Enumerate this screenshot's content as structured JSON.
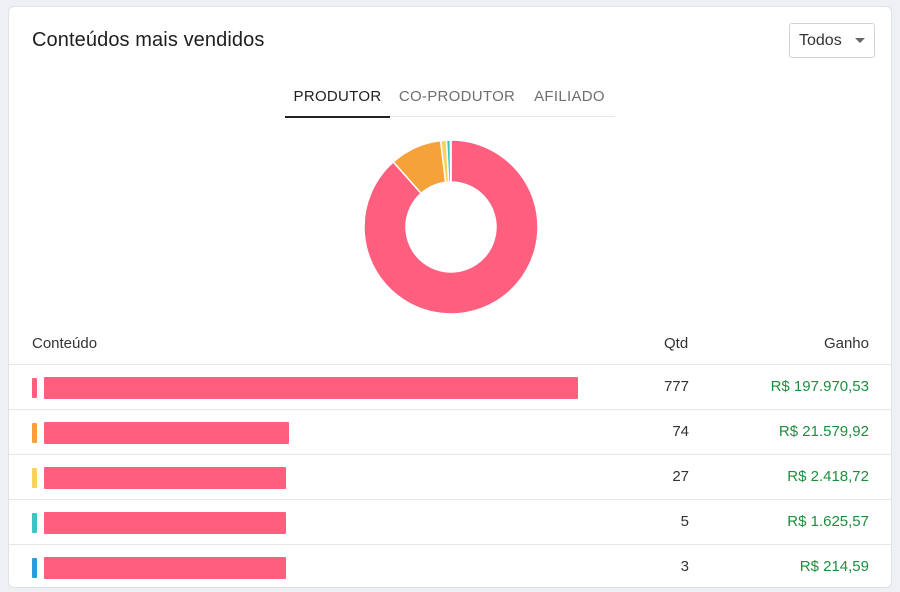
{
  "card": {
    "title": "Conteúdos mais vendidos",
    "filter": {
      "selected": "Todos"
    }
  },
  "tabs": [
    {
      "label": "PRODUTOR",
      "active": true
    },
    {
      "label": "CO-PRODUTOR",
      "active": false
    },
    {
      "label": "AFILIADO",
      "active": false
    }
  ],
  "table": {
    "headers": {
      "content": "Conteúdo",
      "qtd": "Qtd",
      "ganho": "Ganho"
    },
    "rows": [
      {
        "color": "#ff5f7e",
        "qtd": "777",
        "ganho": "R$ 197.970,53"
      },
      {
        "color": "#f5a23a",
        "qtd": "74",
        "ganho": "R$ 21.579,92"
      },
      {
        "color": "#f8d25c",
        "qtd": "27",
        "ganho": "R$ 2.418,72"
      },
      {
        "color": "#3cc3c4",
        "qtd": "5",
        "ganho": "R$ 1.625,57"
      },
      {
        "color": "#2a9fd6",
        "qtd": "3",
        "ganho": "R$ 214,59"
      }
    ]
  },
  "chart_data": {
    "type": "pie",
    "donut": true,
    "values": [
      197970.53,
      21579.92,
      2418.72,
      1625.57,
      214.59
    ],
    "colors": [
      "#ff5f7e",
      "#f5a23a",
      "#f8d25c",
      "#3cc3c4",
      "#2a9fd6"
    ]
  }
}
